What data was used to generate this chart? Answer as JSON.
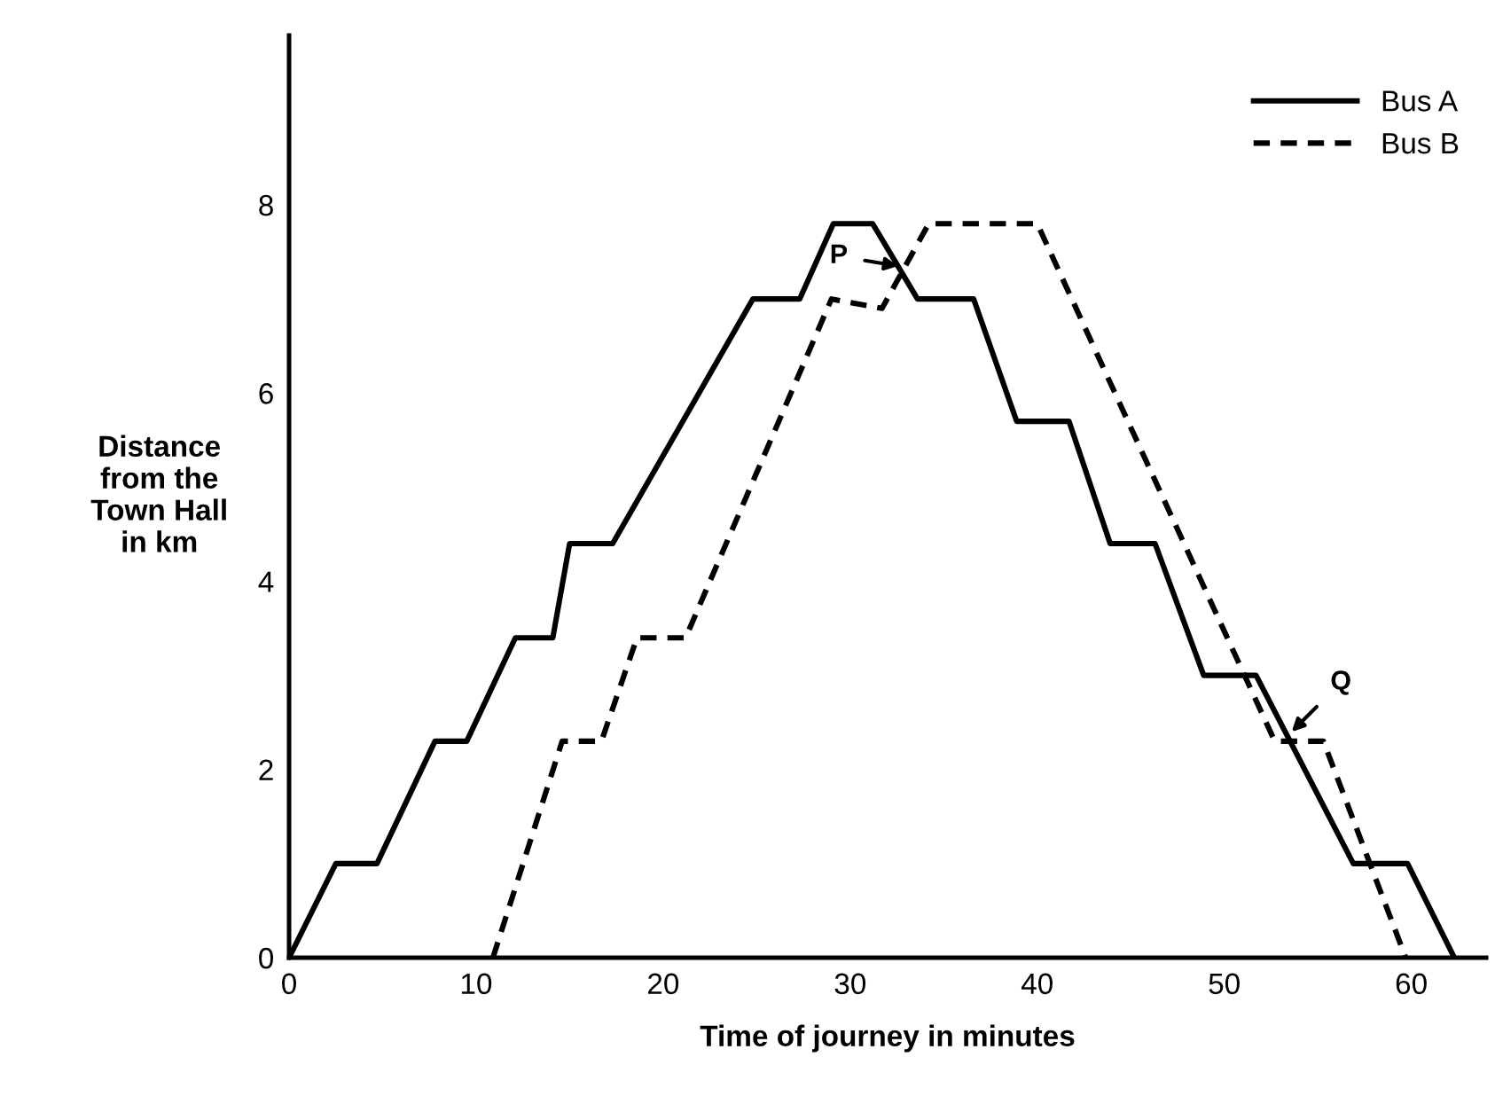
{
  "chart_data": {
    "type": "line",
    "xlabel": "Time of journey in minutes",
    "ylabel": "Distance\nfrom the\nTown Hall\nin km",
    "series": [
      {
        "name": "Bus A",
        "color": "#000000",
        "line_style": "solid",
        "x": [
          0,
          2.5,
          4.7,
          7.8,
          9.5,
          12.1,
          14.1,
          15.0,
          17.3,
          24.8,
          27.3,
          29.1,
          31.2,
          33.6,
          36.6,
          38.9,
          41.7,
          43.9,
          46.3,
          48.9,
          51.7,
          56.9,
          59.8,
          62.3
        ],
        "values": [
          0,
          1,
          1,
          2.3,
          2.3,
          3.4,
          3.4,
          4.4,
          4.4,
          7,
          7,
          7.8,
          7.8,
          7,
          7,
          5.7,
          5.7,
          4.4,
          4.4,
          3,
          3,
          1,
          1,
          0
        ]
      },
      {
        "name": "Bus B",
        "color": "#000000",
        "line_style": "dashed",
        "x": [
          10.9,
          14.6,
          16.7,
          18.6,
          21.2,
          29.0,
          31.7,
          34.2,
          40.0,
          52.7,
          55.3,
          59.7
        ],
        "values": [
          0,
          2.3,
          2.3,
          3.4,
          3.4,
          7,
          6.9,
          7.8,
          7.8,
          2.3,
          2.3,
          0
        ]
      }
    ],
    "annotations": [
      {
        "text": "P",
        "x": 32.55,
        "y": 7.35
      },
      {
        "text": "Q",
        "x": 53.6,
        "y": 2.4
      }
    ],
    "xlim": [
      0,
      64
    ],
    "ylim": [
      0,
      9.8
    ],
    "xticks": [
      0,
      10,
      20,
      30,
      40,
      50,
      60
    ],
    "yticks": [
      0,
      2,
      4,
      6,
      8
    ],
    "grid": false,
    "legend": "top right",
    "marker": "none"
  }
}
